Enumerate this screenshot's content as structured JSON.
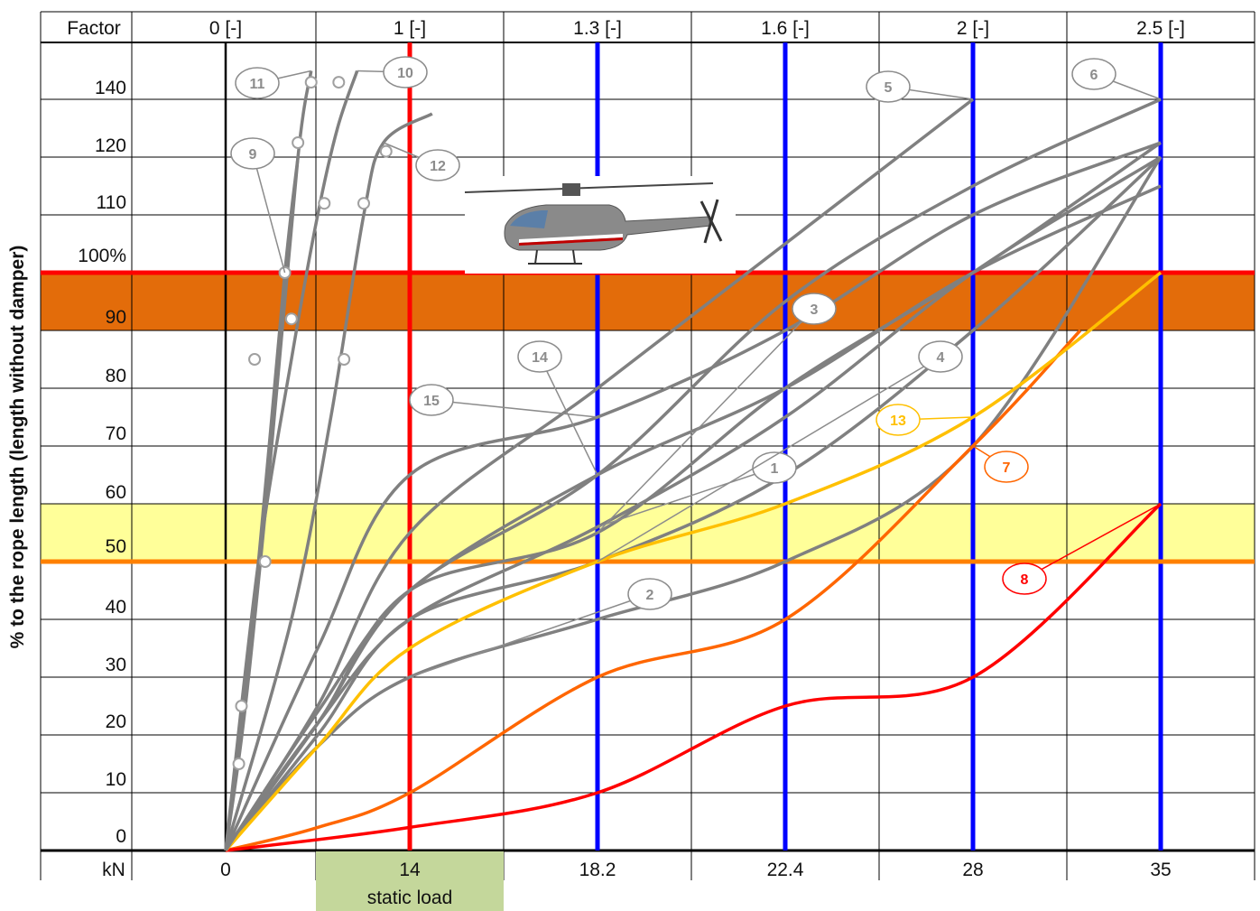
{
  "chart_data": {
    "type": "line",
    "title": "",
    "ylabel": "% to the rope length (length without damper)",
    "xlabel": "kN",
    "x_unit_label": "kN",
    "factor_header_label": "Factor",
    "factor_labels": [
      "0 [-]",
      "1 [-]",
      "1.3 [-]",
      "1.6 [-]",
      "2 [-]",
      "2.5 [-]"
    ],
    "x_tick_labels": [
      "0",
      "14",
      "18.2",
      "22.4",
      "28",
      "35"
    ],
    "static_load_label": "static load",
    "y_tick_labels": [
      "0",
      "10",
      "20",
      "30",
      "40",
      "50",
      "60",
      "70",
      "80",
      "90",
      "100%",
      "110",
      "120",
      "140"
    ],
    "y_columns_note": "",
    "bands": [
      {
        "from": 90,
        "to": 100,
        "color": "#e36c0a"
      },
      {
        "from": 50,
        "to": 60,
        "color": "#ffff99"
      }
    ],
    "hlines": [
      {
        "y": 100,
        "color": "#ff0000"
      },
      {
        "y": 50,
        "color": "#ff8000"
      }
    ],
    "vlines": [
      {
        "x": 14,
        "color": "#ff0000"
      },
      {
        "x": 18.2,
        "color": "#0000ff"
      },
      {
        "x": 22.4,
        "color": "#0000ff"
      },
      {
        "x": 28,
        "color": "#0000ff"
      },
      {
        "x": 35,
        "color": "#0000ff"
      }
    ],
    "series": [
      {
        "name": "1",
        "color": "#808080",
        "x": [
          0,
          7,
          14,
          18.2,
          22.4,
          28,
          35
        ],
        "y": [
          0,
          22,
          40,
          56,
          75,
          100,
          120
        ]
      },
      {
        "name": "2",
        "color": "#808080",
        "x": [
          0,
          7,
          14,
          18.2,
          22.4,
          28,
          35
        ],
        "y": [
          0,
          18,
          30,
          40,
          50,
          70,
          120
        ]
      },
      {
        "name": "3",
        "color": "#808080",
        "x": [
          0,
          7,
          14,
          18.2,
          22.4,
          28,
          35
        ],
        "y": [
          0,
          22,
          45,
          55,
          80,
          100,
          125
        ]
      },
      {
        "name": "4",
        "color": "#808080",
        "x": [
          0,
          7,
          14,
          18.2,
          22.4,
          28,
          35
        ],
        "y": [
          0,
          20,
          40,
          50,
          65,
          90,
          120
        ]
      },
      {
        "name": "5",
        "color": "#808080",
        "x": [
          0,
          7,
          14,
          18.2,
          22.4,
          28
        ],
        "y": [
          0,
          25,
          55,
          80,
          105,
          140
        ]
      },
      {
        "name": "6",
        "color": "#808080",
        "x": [
          0,
          7,
          14,
          18.2,
          22.4,
          28,
          35
        ],
        "y": [
          0,
          22,
          45,
          65,
          95,
          115,
          140
        ]
      },
      {
        "name": "7",
        "color": "#ff6600",
        "x": [
          0,
          7,
          14,
          18.2,
          22.4,
          28,
          32
        ],
        "y": [
          0,
          4,
          10,
          30,
          40,
          70,
          90
        ]
      },
      {
        "name": "8",
        "color": "#ff0000",
        "x": [
          0,
          14,
          18.2,
          22.4,
          28,
          35
        ],
        "y": [
          0,
          4,
          10,
          25,
          30,
          60
        ]
      },
      {
        "name": "9",
        "color": "#808080",
        "x": [
          0,
          0.8,
          2.5,
          4.5,
          5.5
        ],
        "y": [
          0,
          15,
          50,
          100,
          120
        ]
      },
      {
        "name": "10",
        "color": "#808080",
        "x": [
          0,
          2.5,
          5,
          7,
          8.5,
          10
        ],
        "y": [
          0,
          50,
          85,
          110,
          130,
          145
        ]
      },
      {
        "name": "11",
        "color": "#808080",
        "x": [
          0,
          1.5,
          3.5,
          5.5,
          6.5
        ],
        "y": [
          0,
          25,
          70,
          120,
          145
        ]
      },
      {
        "name": "12",
        "color": "#808080",
        "x": [
          0,
          5,
          8,
          10.5,
          12,
          14.5
        ],
        "y": [
          0,
          40,
          75,
          110,
          125,
          135
        ]
      },
      {
        "name": "13",
        "color": "#ffc000",
        "x": [
          0,
          7,
          14,
          18.2,
          22.4,
          28,
          35
        ],
        "y": [
          0,
          18,
          35,
          50,
          60,
          75,
          100
        ]
      },
      {
        "name": "14",
        "color": "#808080",
        "x": [
          0,
          7,
          14,
          18.2,
          22.4,
          28,
          35
        ],
        "y": [
          0,
          24,
          45,
          65,
          80,
          100,
          115
        ]
      },
      {
        "name": "15",
        "color": "#808080",
        "x": [
          0,
          7,
          14,
          18.2,
          22.4,
          28,
          35
        ],
        "y": [
          0,
          35,
          65,
          75,
          90,
          110,
          125
        ]
      }
    ],
    "markers": [
      {
        "series": "9",
        "x": 1,
        "y": 15
      },
      {
        "series": "9",
        "x": 1.2,
        "y": 25
      },
      {
        "series": "9",
        "x": 3,
        "y": 50
      },
      {
        "series": "11",
        "x": 2.2,
        "y": 85
      },
      {
        "series": "11",
        "x": 4.5,
        "y": 100
      },
      {
        "series": "9",
        "x": 5,
        "y": 92
      },
      {
        "series": "11",
        "x": 5.5,
        "y": 125
      },
      {
        "series": "11",
        "x": 6.5,
        "y": 143
      },
      {
        "series": "10",
        "x": 8.6,
        "y": 143
      },
      {
        "series": "10",
        "x": 7.5,
        "y": 112
      },
      {
        "series": "12",
        "x": 9,
        "y": 85
      },
      {
        "series": "12",
        "x": 10.5,
        "y": 112
      },
      {
        "series": "12",
        "x": 12.2,
        "y": 122
      }
    ]
  },
  "icons": {
    "helicopter": "helicopter-icon"
  }
}
